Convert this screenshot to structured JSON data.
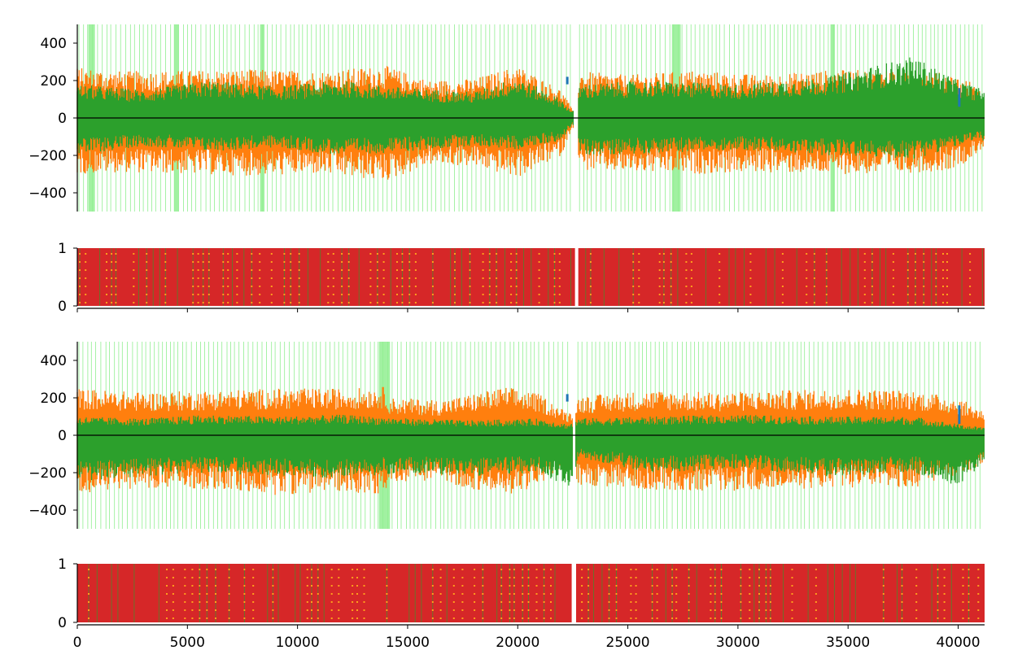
{
  "chart_data": [
    {
      "type": "line",
      "title": "",
      "xlabel": "",
      "ylabel": "",
      "xlim": [
        0,
        41200
      ],
      "ylim": [
        -500,
        500
      ],
      "yticks": [
        "400",
        "200",
        "0",
        "−200",
        "−400"
      ],
      "ytick_values": [
        400,
        200,
        0,
        -200,
        -400
      ],
      "zero_line": true,
      "gap_x": [
        22550,
        22750
      ],
      "highlight_bands_x": [
        [
          500,
          800
        ],
        [
          4400,
          4600
        ],
        [
          8300,
          8500
        ],
        [
          27000,
          27400
        ],
        [
          34200,
          34400
        ]
      ],
      "series": [
        {
          "color": "#ff7f0e",
          "envelope": {
            "x": [
              0,
              2000,
              5000,
              8000,
              11000,
              14000,
              16000,
              18000,
              20000,
              22000,
              22500,
              22800,
              25000,
              28000,
              31000,
              34000,
              37000,
              39500,
              40500,
              41200
            ],
            "upper": [
              270,
              250,
              255,
              260,
              250,
              280,
              200,
              210,
              280,
              150,
              40,
              250,
              230,
              255,
              230,
              255,
              260,
              240,
              200,
              120
            ],
            "lower": [
              -300,
              -290,
              -300,
              -310,
              -300,
              -340,
              -250,
              -260,
              -320,
              -200,
              -40,
              -280,
              -290,
              -300,
              -290,
              -300,
              -300,
              -280,
              -230,
              -150
            ]
          }
        },
        {
          "color": "#2ca02c",
          "envelope": {
            "x": [
              0,
              3000,
              6000,
              9000,
              12000,
              15000,
              18000,
              20000,
              22000,
              22500,
              22800,
              26000,
              30000,
              34000,
              38000,
              40000,
              41200
            ],
            "upper": [
              180,
              150,
              200,
              170,
              200,
              160,
              140,
              220,
              100,
              30,
              180,
              200,
              180,
              220,
              330,
              200,
              150
            ],
            "lower": [
              -200,
              -150,
              -180,
              -160,
              -200,
              -180,
              -150,
              -170,
              -120,
              -30,
              -200,
              -190,
              -170,
              -200,
              -220,
              -150,
              -120
            ]
          }
        },
        {
          "color": "#1f77b4",
          "envelope": {
            "x": [
              0,
              41200
            ],
            "upper": [
              0,
              0
            ],
            "lower": [
              0,
              0
            ]
          }
        }
      ]
    },
    {
      "type": "line",
      "title": "",
      "xlabel": "",
      "ylabel": "",
      "xlim": [
        0,
        41200
      ],
      "ylim": [
        0,
        1
      ],
      "yticks": [
        "1",
        "0"
      ],
      "ytick_values": [
        1,
        0
      ],
      "xticks_labeled": false,
      "gap_x": [
        22600,
        22750
      ],
      "series": [
        {
          "color": "#d62728",
          "fill": [
            0,
            1
          ]
        },
        {
          "color": "#2ca02c",
          "pattern": "vertical-lines"
        },
        {
          "color": "#ff7f0e",
          "pattern": "dots"
        }
      ]
    },
    {
      "type": "line",
      "title": "",
      "xlabel": "",
      "ylabel": "",
      "xlim": [
        0,
        41200
      ],
      "ylim": [
        -500,
        500
      ],
      "yticks": [
        "400",
        "200",
        "0",
        "−200",
        "−400"
      ],
      "ytick_values": [
        400,
        200,
        0,
        -200,
        -400
      ],
      "zero_line": true,
      "gap_x": [
        22500,
        22600
      ],
      "highlight_bands_x": [
        [
          13700,
          14200
        ]
      ],
      "series": [
        {
          "color": "#ff7f0e",
          "envelope": {
            "x": [
              0,
              3000,
              6000,
              9000,
              12000,
              14000,
              14200,
              16500,
              17500,
              19500,
              21000,
              22300,
              22800,
              26000,
              29000,
              32000,
              35000,
              38000,
              40000,
              41200
            ],
            "upper": [
              250,
              230,
              240,
              250,
              250,
              260,
              200,
              190,
              210,
              260,
              220,
              120,
              210,
              240,
              230,
              240,
              250,
              240,
              200,
              130
            ],
            "lower": [
              -310,
              -280,
              -290,
              -320,
              -300,
              -320,
              -250,
              -240,
              -280,
              -320,
              -270,
              -150,
              -270,
              -290,
              -300,
              -290,
              -280,
              -280,
              -220,
              -160
            ]
          }
        },
        {
          "color": "#2ca02c",
          "envelope": {
            "x": [
              0,
              3000,
              6000,
              9000,
              12000,
              15000,
              18000,
              21000,
              22300,
              22800,
              26000,
              30000,
              34000,
              38000,
              40000,
              41200
            ],
            "upper": [
              100,
              90,
              110,
              100,
              110,
              90,
              80,
              90,
              60,
              90,
              100,
              110,
              100,
              100,
              60,
              40
            ],
            "lower": [
              -250,
              -220,
              -200,
              -220,
              -230,
              -200,
              -220,
              -200,
              -280,
              -120,
              -200,
              -180,
              -220,
              -200,
              -270,
              -150
            ]
          }
        },
        {
          "color": "#1f77b4",
          "envelope": {
            "x": [
              0,
              41200
            ],
            "upper": [
              0,
              0
            ],
            "lower": [
              0,
              0
            ]
          }
        }
      ]
    },
    {
      "type": "line",
      "title": "",
      "xlabel": "",
      "ylabel": "",
      "xlim": [
        0,
        41200
      ],
      "ylim": [
        0,
        1
      ],
      "yticks": [
        "1",
        "0"
      ],
      "ytick_values": [
        1,
        0
      ],
      "xticks": [
        "0",
        "5000",
        "10000",
        "15000",
        "20000",
        "25000",
        "30000",
        "35000",
        "40000"
      ],
      "xtick_values": [
        0,
        5000,
        10000,
        15000,
        20000,
        25000,
        30000,
        35000,
        40000
      ],
      "gap_x": [
        22450,
        22650
      ],
      "series": [
        {
          "color": "#d62728",
          "fill": [
            0,
            1
          ]
        },
        {
          "color": "#2ca02c",
          "pattern": "vertical-lines"
        },
        {
          "color": "#ff7f0e",
          "pattern": "dots"
        }
      ]
    }
  ]
}
